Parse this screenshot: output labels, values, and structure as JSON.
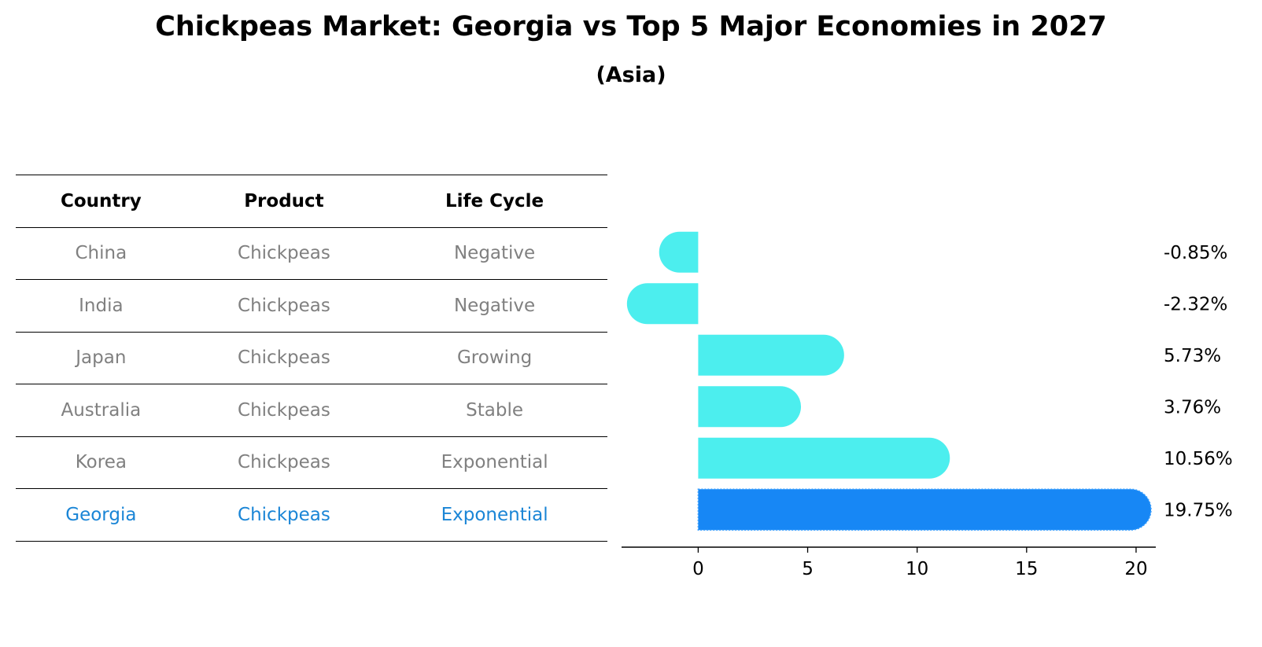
{
  "header": {
    "title": "Chickpeas Market: Georgia vs Top 5 Major Economies in 2027",
    "subtitle": "(Asia)"
  },
  "table": {
    "columns": [
      "Country",
      "Product",
      "Life Cycle"
    ],
    "rows": [
      {
        "country": "China",
        "product": "Chickpeas",
        "life_cycle": "Negative"
      },
      {
        "country": "India",
        "product": "Chickpeas",
        "life_cycle": "Negative"
      },
      {
        "country": "Japan",
        "product": "Chickpeas",
        "life_cycle": "Growing"
      },
      {
        "country": "Australia",
        "product": "Chickpeas",
        "life_cycle": "Stable"
      },
      {
        "country": "Korea",
        "product": "Chickpeas",
        "life_cycle": "Exponential"
      },
      {
        "country": "Georgia",
        "product": "Chickpeas",
        "life_cycle": "Exponential"
      }
    ]
  },
  "colors": {
    "bar": "#4ceeee",
    "highlight_bar": "#1787f5",
    "highlight_text": "#1a85d6",
    "muted_text": "#808080"
  },
  "chart_data": {
    "type": "bar",
    "orientation": "horizontal",
    "categories": [
      "China",
      "India",
      "Japan",
      "Australia",
      "Korea",
      "Georgia"
    ],
    "values": [
      -0.85,
      -2.32,
      5.73,
      3.76,
      10.56,
      19.75
    ],
    "value_labels": [
      "-0.85%",
      "-2.32%",
      "5.73%",
      "3.76%",
      "10.56%",
      "19.75%"
    ],
    "highlight": "Georgia",
    "xlim": [
      -3.5,
      20.9
    ],
    "xticks": [
      0,
      5,
      10,
      15,
      20
    ],
    "xlabel": "",
    "ylabel": "",
    "grid": false
  }
}
